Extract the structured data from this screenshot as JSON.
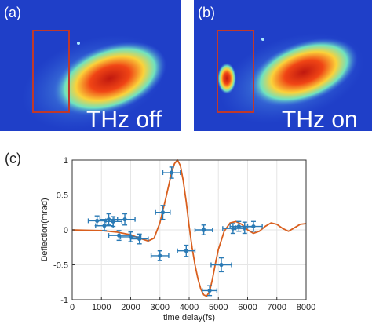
{
  "panels": [
    {
      "letter": "(a)",
      "caption": "THz off"
    },
    {
      "letter": "(b)",
      "caption": "THz on"
    }
  ],
  "colors": {
    "image_background": "#1f3fc8",
    "roi_box": "#c0392b",
    "data_points": "#2a7ab5",
    "fit_curve": "#d95f1e",
    "grid": "#e6e6e6"
  },
  "chart_data": {
    "type": "scatter",
    "panel_letter": "(c)",
    "title": "",
    "xlabel": "time delay(fs)",
    "ylabel": "Deflection(mrad)",
    "xlim": [
      0,
      8000
    ],
    "ylim": [
      -1,
      1
    ],
    "x_ticks": [
      0,
      1000,
      2000,
      3000,
      4000,
      5000,
      6000,
      7000,
      8000
    ],
    "y_ticks": [
      -1,
      -0.5,
      0,
      0.5,
      1
    ],
    "x_tick_labels": [
      "0",
      "1000",
      "2000",
      "3000",
      "4000",
      "5000",
      "6000",
      "7000",
      "8000"
    ],
    "y_tick_labels": [
      "-1",
      "-0.5",
      "0",
      "0.5",
      "1"
    ],
    "grid": true,
    "series": [
      {
        "kind": "errorbar",
        "points": [
          {
            "x": 850,
            "y": 0.13,
            "xerr": 300,
            "yerr": 0.07
          },
          {
            "x": 1100,
            "y": 0.06,
            "xerr": 300,
            "yerr": 0.07
          },
          {
            "x": 1250,
            "y": 0.15,
            "xerr": 300,
            "yerr": 0.08
          },
          {
            "x": 1400,
            "y": 0.12,
            "xerr": 300,
            "yerr": 0.07
          },
          {
            "x": 1600,
            "y": -0.08,
            "xerr": 350,
            "yerr": 0.07
          },
          {
            "x": 1800,
            "y": 0.15,
            "xerr": 350,
            "yerr": 0.08
          },
          {
            "x": 2000,
            "y": -0.1,
            "xerr": 350,
            "yerr": 0.07
          },
          {
            "x": 2300,
            "y": -0.13,
            "xerr": 300,
            "yerr": 0.07
          },
          {
            "x": 3000,
            "y": -0.37,
            "xerr": 300,
            "yerr": 0.07
          },
          {
            "x": 3100,
            "y": 0.25,
            "xerr": 250,
            "yerr": 0.1
          },
          {
            "x": 3400,
            "y": 0.82,
            "xerr": 300,
            "yerr": 0.08
          },
          {
            "x": 3900,
            "y": -0.3,
            "xerr": 300,
            "yerr": 0.08
          },
          {
            "x": 4500,
            "y": 0.0,
            "xerr": 300,
            "yerr": 0.07
          },
          {
            "x": 4700,
            "y": -0.87,
            "xerr": 250,
            "yerr": 0.07
          },
          {
            "x": 5100,
            "y": -0.5,
            "xerr": 350,
            "yerr": 0.1
          },
          {
            "x": 5500,
            "y": 0.02,
            "xerr": 350,
            "yerr": 0.07
          },
          {
            "x": 5700,
            "y": 0.05,
            "xerr": 300,
            "yerr": 0.07
          },
          {
            "x": 5900,
            "y": 0.03,
            "xerr": 300,
            "yerr": 0.08
          },
          {
            "x": 6200,
            "y": 0.05,
            "xerr": 300,
            "yerr": 0.07
          }
        ]
      },
      {
        "kind": "line",
        "x": [
          0,
          1000,
          1500,
          2000,
          2300,
          2600,
          2800,
          3000,
          3200,
          3400,
          3500,
          3600,
          3700,
          3800,
          3900,
          4000,
          4100,
          4200,
          4300,
          4400,
          4500,
          4600,
          4700,
          4800,
          4900,
          5000,
          5200,
          5400,
          5600,
          5800,
          6000,
          6200,
          6400,
          6600,
          6800,
          7000,
          7200,
          7400,
          7600,
          7800,
          8000
        ],
        "y": [
          0.0,
          -0.01,
          -0.03,
          -0.07,
          -0.12,
          -0.16,
          -0.12,
          0.1,
          0.45,
          0.82,
          0.95,
          1.0,
          0.92,
          0.7,
          0.4,
          0.05,
          -0.25,
          -0.5,
          -0.7,
          -0.85,
          -0.93,
          -0.95,
          -0.88,
          -0.7,
          -0.48,
          -0.28,
          -0.02,
          0.1,
          0.12,
          0.08,
          0.0,
          -0.05,
          -0.02,
          0.05,
          0.1,
          0.08,
          0.02,
          -0.02,
          0.03,
          0.08,
          0.09
        ]
      }
    ]
  }
}
